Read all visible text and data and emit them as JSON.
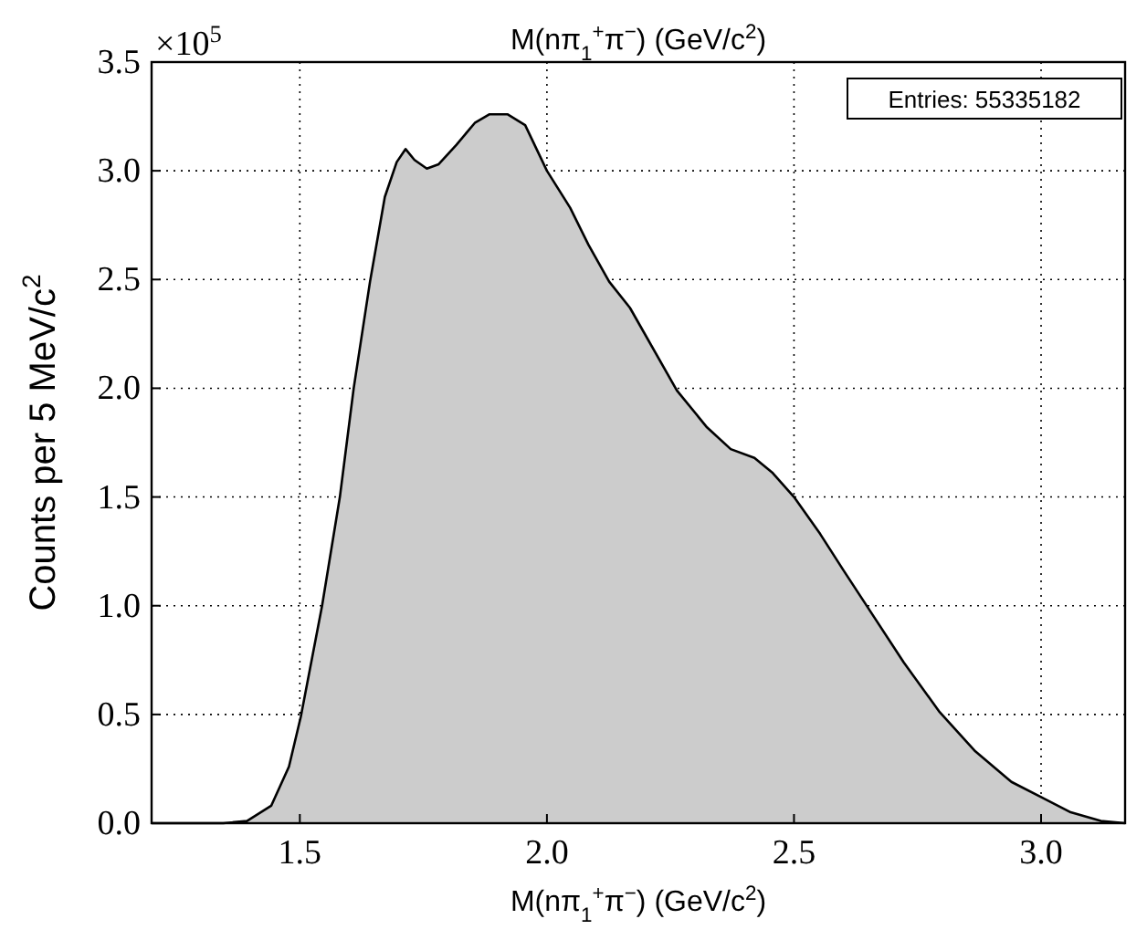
{
  "chart_data": {
    "type": "area",
    "title": "M(nπ$_{1}$$^{+}$π$^{−}$) (GeV/c$^{2}$)",
    "xlabel": "M(nπ$_{1}$$^{+}$π$^{−}$) (GeV/c$^{2}$)",
    "ylabel": "Counts per 5 MeV/c$^{2}$",
    "annotations": [
      "×10$^{5}$",
      "Entries: 55335182"
    ],
    "x": [
      1.2,
      1.3,
      1.345,
      1.393,
      1.442,
      1.478,
      1.502,
      1.545,
      1.581,
      1.609,
      1.642,
      1.672,
      1.696,
      1.714,
      1.732,
      1.757,
      1.781,
      1.817,
      1.854,
      1.884,
      1.92,
      1.956,
      2.0,
      2.047,
      2.084,
      2.126,
      2.168,
      2.263,
      2.324,
      2.372,
      2.42,
      2.457,
      2.5,
      2.553,
      2.601,
      2.65,
      2.722,
      2.795,
      2.867,
      2.94,
      3.0,
      3.06,
      3.121,
      3.17
    ],
    "series": [
      {
        "color": "#cccccc",
        "values": [
          0,
          0,
          0,
          0.01,
          0.08,
          0.26,
          0.49,
          1.0,
          1.5,
          2.0,
          2.49,
          2.88,
          3.04,
          3.1,
          3.05,
          3.01,
          3.03,
          3.12,
          3.22,
          3.26,
          3.26,
          3.21,
          3.0,
          2.83,
          2.66,
          2.49,
          2.37,
          1.99,
          1.82,
          1.72,
          1.68,
          1.61,
          1.5,
          1.33,
          1.16,
          0.99,
          0.74,
          0.51,
          0.33,
          0.19,
          0.12,
          0.05,
          0.01,
          0
        ]
      }
    ],
    "xlim": [
      1.2,
      3.17
    ],
    "ylim": [
      0,
      3.5
    ],
    "xticks": [
      {
        "value": 1.5,
        "label": "1.5"
      },
      {
        "value": 2.0,
        "label": "2.0"
      },
      {
        "value": 2.5,
        "label": "2.5"
      },
      {
        "value": 3.0,
        "label": "3.0"
      }
    ],
    "yticks": [
      {
        "value": 0,
        "label": "0.0"
      },
      {
        "value": 0.5,
        "label": "0.5"
      },
      {
        "value": 1.0,
        "label": "1.0"
      },
      {
        "value": 1.5,
        "label": "1.5"
      },
      {
        "value": 2.0,
        "label": "2.0"
      },
      {
        "value": 2.5,
        "label": "2.5"
      },
      {
        "value": 3.0,
        "label": "3.0"
      },
      {
        "value": 3.5,
        "label": "3.5"
      }
    ],
    "grid": true
  }
}
